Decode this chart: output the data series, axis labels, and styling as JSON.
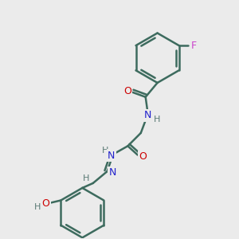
{
  "background_color": "#ebebeb",
  "bond_color": "#3d6b5e",
  "bond_width": 1.8,
  "atom_colors": {
    "O": "#cc0000",
    "N": "#2222cc",
    "F": "#cc44cc",
    "H": "#5a7a75",
    "C": "#3d6b5e"
  },
  "font_size": 9,
  "fig_width": 3.0,
  "fig_height": 3.0,
  "dpi": 100
}
